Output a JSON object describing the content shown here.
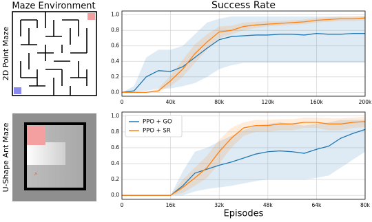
{
  "left_panel": {
    "title": "Maze Environment",
    "labels": [
      "2D Point Maze",
      "U-Shape Ant Maze"
    ]
  },
  "chart_data": [
    {
      "type": "line",
      "title": "Success Rate",
      "x": [
        0,
        10000,
        20000,
        30000,
        40000,
        50000,
        60000,
        70000,
        80000,
        90000,
        100000,
        110000,
        120000,
        130000,
        140000,
        150000,
        160000,
        170000,
        180000,
        190000,
        200000
      ],
      "series": [
        {
          "color": "#1f77b4",
          "values": [
            0,
            0.02,
            0.2,
            0.28,
            0.27,
            0.33,
            0.45,
            0.57,
            0.68,
            0.72,
            0.73,
            0.74,
            0.74,
            0.75,
            0.75,
            0.74,
            0.76,
            0.75,
            0.75,
            0.76,
            0.76
          ],
          "lower": [
            0,
            0,
            0.02,
            0.05,
            0.05,
            0.08,
            0.12,
            0.2,
            0.3,
            0.35,
            0.38,
            0.38,
            0.38,
            0.38,
            0.38,
            0.38,
            0.38,
            0.38,
            0.38,
            0.38,
            0.38
          ],
          "upper": [
            0,
            0.08,
            0.45,
            0.55,
            0.55,
            0.6,
            0.75,
            0.9,
            0.95,
            0.98,
            0.98,
            0.98,
            0.98,
            0.98,
            0.98,
            0.98,
            0.98,
            0.98,
            0.98,
            0.98,
            0.98
          ]
        },
        {
          "color": "#ff7f0e",
          "values": [
            0,
            0,
            0,
            0.02,
            0.15,
            0.3,
            0.5,
            0.65,
            0.78,
            0.8,
            0.85,
            0.87,
            0.88,
            0.89,
            0.9,
            0.91,
            0.93,
            0.94,
            0.95,
            0.95,
            0.96
          ],
          "lower": [
            0,
            0,
            0,
            0,
            0.08,
            0.2,
            0.38,
            0.55,
            0.7,
            0.75,
            0.8,
            0.83,
            0.85,
            0.86,
            0.87,
            0.88,
            0.9,
            0.91,
            0.92,
            0.92,
            0.93
          ],
          "upper": [
            0,
            0,
            0,
            0.05,
            0.22,
            0.42,
            0.62,
            0.75,
            0.85,
            0.86,
            0.9,
            0.91,
            0.92,
            0.92,
            0.93,
            0.94,
            0.96,
            0.97,
            0.98,
            0.98,
            0.99
          ]
        }
      ],
      "xlim": [
        0,
        200000
      ],
      "ylim": [
        -0.05,
        1.05
      ],
      "xticks": [
        0,
        {
          "value": 40000,
          "label": "40k"
        },
        {
          "value": 80000,
          "label": "80k"
        },
        {
          "value": 120000,
          "label": "120k"
        },
        {
          "value": 160000,
          "label": "160k"
        },
        {
          "value": 200000,
          "label": "200k"
        }
      ],
      "yticks": [
        {
          "value": 0,
          "label": "0.0"
        },
        0.2,
        0.4,
        0.6,
        0.8,
        {
          "value": 1,
          "label": "1.0"
        }
      ],
      "grid": true
    },
    {
      "type": "line",
      "xlabel": "Episodes",
      "legend": "upper left",
      "x": [
        0,
        4000,
        8000,
        12000,
        16000,
        20000,
        24000,
        28000,
        32000,
        36000,
        40000,
        44000,
        48000,
        52000,
        56000,
        60000,
        64000,
        68000,
        72000,
        76000,
        80000
      ],
      "series": [
        {
          "name": "PPO + GO",
          "color": "#1f77b4",
          "values": [
            0,
            0,
            0,
            0,
            0,
            0.12,
            0.28,
            0.33,
            0.38,
            0.42,
            0.47,
            0.52,
            0.55,
            0.56,
            0.55,
            0.53,
            0.58,
            0.62,
            0.72,
            0.78,
            0.83
          ],
          "lower": [
            0,
            0,
            0,
            0,
            0,
            0,
            0.05,
            0.08,
            0.1,
            0.12,
            0.15,
            0.18,
            0.2,
            0.2,
            0.2,
            0.2,
            0.22,
            0.25,
            0.35,
            0.45,
            0.55
          ],
          "upper": [
            0,
            0,
            0,
            0,
            0,
            0.3,
            0.55,
            0.6,
            0.68,
            0.75,
            0.82,
            0.88,
            0.9,
            0.92,
            0.9,
            0.88,
            0.9,
            0.92,
            0.95,
            0.95,
            0.95
          ]
        },
        {
          "name": "PPO + SR",
          "color": "#ff7f0e",
          "values": [
            0,
            0,
            0,
            0,
            0,
            0.1,
            0.22,
            0.35,
            0.55,
            0.72,
            0.85,
            0.88,
            0.88,
            0.9,
            0.9,
            0.92,
            0.92,
            0.9,
            0.9,
            0.92,
            0.93
          ],
          "lower": [
            0,
            0,
            0,
            0,
            0,
            0.03,
            0.12,
            0.22,
            0.4,
            0.6,
            0.75,
            0.8,
            0.8,
            0.82,
            0.82,
            0.85,
            0.85,
            0.82,
            0.82,
            0.85,
            0.86
          ],
          "upper": [
            0,
            0,
            0,
            0,
            0,
            0.2,
            0.35,
            0.5,
            0.7,
            0.85,
            0.92,
            0.95,
            0.95,
            0.96,
            0.96,
            0.98,
            0.98,
            0.97,
            0.97,
            0.98,
            0.99
          ]
        }
      ],
      "xlim": [
        0,
        80000
      ],
      "ylim": [
        -0.05,
        1.05
      ],
      "xticks": [
        0,
        {
          "value": 16000,
          "label": "16k"
        },
        {
          "value": 32000,
          "label": "32k"
        },
        {
          "value": 48000,
          "label": "48k"
        },
        {
          "value": 64000,
          "label": "64k"
        },
        {
          "value": 80000,
          "label": "80k"
        }
      ],
      "yticks": [
        {
          "value": 0,
          "label": "0.0"
        },
        0.2,
        0.4,
        0.6,
        0.8,
        {
          "value": 1,
          "label": "1.0"
        }
      ],
      "grid": true
    }
  ]
}
